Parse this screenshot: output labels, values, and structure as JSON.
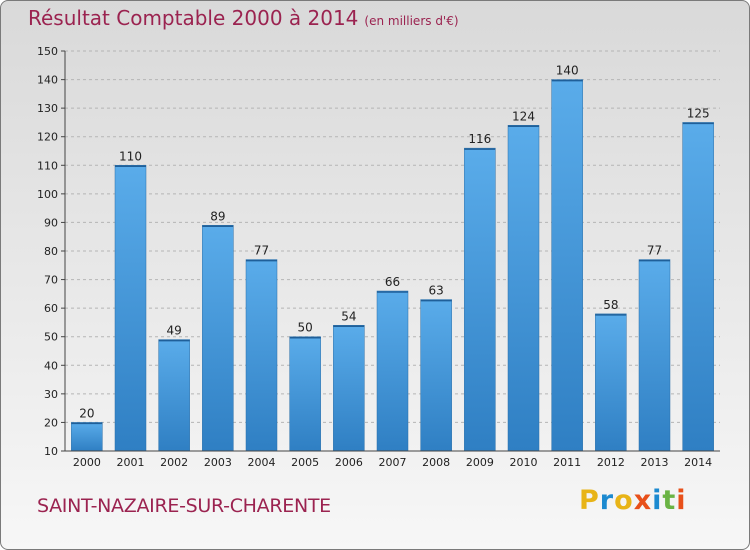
{
  "title": "Résultat Comptable 2000 à 2014",
  "unit": "(en milliers d'€)",
  "commune": "SAINT-NAZAIRE-SUR-CHARENTE",
  "logo": {
    "text": "Proxiti",
    "colors": [
      "#e8b417",
      "#1c8ad0",
      "#e8b417",
      "#e8501a",
      "#1c8ad0",
      "#6ab344",
      "#e8501a"
    ]
  },
  "colors": {
    "title": "#9b2350",
    "bar_top": "#5aacea",
    "bar_bottom": "#2f7fc3"
  },
  "chart_data": {
    "type": "bar",
    "categories": [
      "2000",
      "2001",
      "2002",
      "2003",
      "2004",
      "2005",
      "2006",
      "2007",
      "2008",
      "2009",
      "2010",
      "2011",
      "2012",
      "2013",
      "2014"
    ],
    "values": [
      20,
      110,
      49,
      89,
      77,
      50,
      54,
      66,
      63,
      116,
      124,
      140,
      58,
      77,
      125
    ],
    "ylim": [
      10,
      150
    ],
    "yticks": [
      10,
      20,
      30,
      40,
      50,
      60,
      70,
      80,
      90,
      100,
      110,
      120,
      130,
      140,
      150
    ],
    "grid": true
  }
}
